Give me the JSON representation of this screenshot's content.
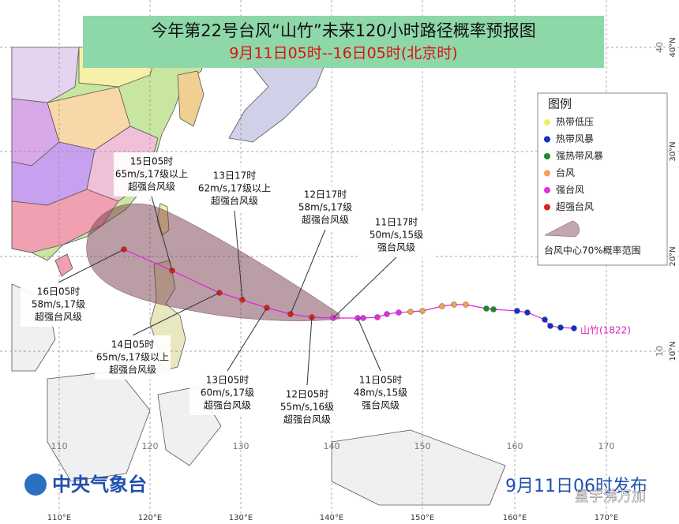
{
  "title": "今年第22号台风“山竹”未来120小时路径概率预报图",
  "subtitle": "9月11日05时--16日05时(北京时)",
  "legend": {
    "title": "图例",
    "items": [
      {
        "label": "热带低压",
        "color": "#f2ef5a"
      },
      {
        "label": "热带风暴",
        "color": "#1030c8"
      },
      {
        "label": "强热带风暴",
        "color": "#1a8a2a"
      },
      {
        "label": "台风",
        "color": "#f4a050"
      },
      {
        "label": "强台风",
        "color": "#e030e0"
      },
      {
        "label": "超强台风",
        "color": "#e02020"
      }
    ],
    "cone_label": "台风中心70%概率范围"
  },
  "callouts": [
    {
      "time": "15日05时",
      "wind": "65m/s,17级以上",
      "category": "超强台风级"
    },
    {
      "time": "13日17时",
      "wind": "62m/s,17级以上",
      "category": "超强台风级"
    },
    {
      "time": "12日17时",
      "wind": "58m/s,17级",
      "category": "超强台风级"
    },
    {
      "time": "11日17时",
      "wind": "50m/s,15级",
      "category": "强台风级"
    },
    {
      "time": "16日05时",
      "wind": "58m/s,17级",
      "category": "超强台风级"
    },
    {
      "time": "14日05时",
      "wind": "65m/s,17级以上",
      "category": "超强台风级"
    },
    {
      "time": "13日05时",
      "wind": "60m/s,17级",
      "category": "超强台风级"
    },
    {
      "time": "12日05时",
      "wind": "55m/s,16级",
      "category": "超强台风级"
    },
    {
      "time": "11日05时",
      "wind": "48m/s,15级",
      "category": "强台风级"
    }
  ],
  "typhoon_name": "山竹(1822)",
  "lon_labels": [
    "110°E",
    "120°E",
    "130°E",
    "140°E",
    "150°E",
    "160°E",
    "170°E"
  ],
  "lat_labels": [
    "40°N",
    "30°N",
    "20°N",
    "10°N"
  ],
  "grid_lon": [
    "110",
    "120",
    "130",
    "140",
    "150",
    "160",
    "170"
  ],
  "grid_lat": [
    "40",
    "30",
    "20",
    "10"
  ],
  "agency": "中央气象台",
  "issued": "9月11日06时发布",
  "watermark": "星宇沸万加"
}
